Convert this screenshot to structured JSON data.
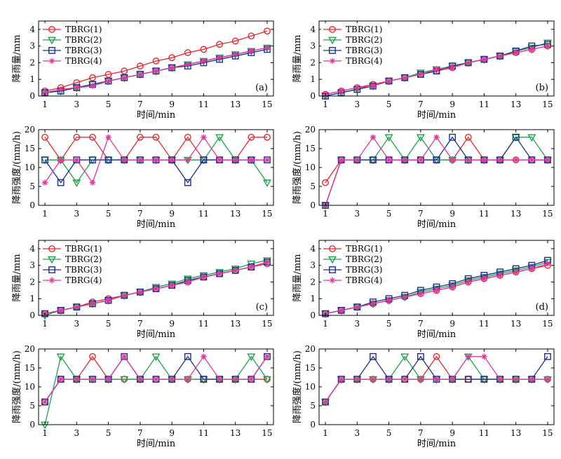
{
  "chart_data": [
    {
      "id": "a",
      "type": "line",
      "tag": "(a)",
      "xlabel": "时间/min",
      "ylabel": "降雨量/mm",
      "xlim": [
        0.6,
        15.4
      ],
      "ylim": [
        0,
        4.5
      ],
      "xticks": [
        1,
        3,
        5,
        7,
        9,
        11,
        13,
        15
      ],
      "yticks": [
        0,
        1,
        2,
        3,
        4
      ],
      "legend": true,
      "legend_position": "top-left",
      "x": [
        1,
        2,
        3,
        4,
        5,
        6,
        7,
        8,
        9,
        10,
        11,
        12,
        13,
        14,
        15
      ],
      "series": [
        {
          "name": "TBRG(1)",
          "values": [
            0.3,
            0.5,
            0.8,
            1.1,
            1.3,
            1.5,
            1.8,
            2.1,
            2.3,
            2.6,
            2.8,
            3.1,
            3.3,
            3.6,
            3.9
          ]
        },
        {
          "name": "TBRG(2)",
          "values": [
            0.2,
            0.3,
            0.5,
            0.7,
            0.9,
            1.1,
            1.3,
            1.5,
            1.7,
            1.9,
            2.1,
            2.3,
            2.5,
            2.7,
            2.9
          ]
        },
        {
          "name": "TBRG(3)",
          "values": [
            0.2,
            0.3,
            0.5,
            0.7,
            0.9,
            1.1,
            1.3,
            1.5,
            1.7,
            1.8,
            2.0,
            2.2,
            2.4,
            2.6,
            2.8
          ]
        },
        {
          "name": "TBRG(4)",
          "values": [
            0.2,
            0.4,
            0.5,
            0.6,
            0.9,
            1.1,
            1.3,
            1.5,
            1.7,
            1.9,
            2.1,
            2.3,
            2.5,
            2.7,
            2.9
          ]
        }
      ]
    },
    {
      "id": "b",
      "type": "line",
      "tag": "(b)",
      "xlabel": "时间/min",
      "ylabel": "降雨量/mm",
      "xlim": [
        0.6,
        15.4
      ],
      "ylim": [
        0,
        4.5
      ],
      "xticks": [
        1,
        3,
        5,
        7,
        9,
        11,
        13,
        15
      ],
      "yticks": [
        0,
        1,
        2,
        3,
        4
      ],
      "legend": true,
      "legend_position": "top-left",
      "x": [
        1,
        2,
        3,
        4,
        5,
        6,
        7,
        8,
        9,
        10,
        11,
        12,
        13,
        14,
        15
      ],
      "series": [
        {
          "name": "TBRG(1)",
          "values": [
            0.1,
            0.3,
            0.5,
            0.7,
            0.9,
            1.1,
            1.3,
            1.5,
            1.7,
            2.0,
            2.2,
            2.4,
            2.6,
            2.8,
            3.0
          ]
        },
        {
          "name": "TBRG(2)",
          "values": [
            0.0,
            0.2,
            0.4,
            0.6,
            0.9,
            1.1,
            1.4,
            1.6,
            1.8,
            2.0,
            2.2,
            2.4,
            2.7,
            2.9,
            3.2
          ]
        },
        {
          "name": "TBRG(3)",
          "values": [
            0.0,
            0.2,
            0.4,
            0.6,
            0.9,
            1.1,
            1.3,
            1.5,
            1.8,
            2.0,
            2.2,
            2.4,
            2.7,
            3.0,
            3.1
          ]
        },
        {
          "name": "TBRG(4)",
          "values": [
            0.1,
            0.3,
            0.5,
            0.6,
            0.9,
            1.1,
            1.3,
            1.6,
            1.7,
            2.0,
            2.2,
            2.4,
            2.6,
            2.8,
            3.0
          ]
        }
      ]
    },
    {
      "id": "a2",
      "type": "line",
      "xlabel": "时间/min",
      "ylabel": "降雨强度/(mm/h)",
      "xlim": [
        0.6,
        15.4
      ],
      "ylim": [
        0,
        20
      ],
      "xticks": [
        1,
        3,
        5,
        7,
        9,
        11,
        13,
        15
      ],
      "yticks": [
        0,
        5,
        10,
        15,
        20
      ],
      "legend": false,
      "x": [
        1,
        2,
        3,
        4,
        5,
        6,
        7,
        8,
        9,
        10,
        11,
        12,
        13,
        14,
        15
      ],
      "series": [
        {
          "name": "TBRG(1)",
          "values": [
            18,
            12,
            18,
            18,
            12,
            12,
            18,
            18,
            12,
            18,
            12,
            12,
            12,
            18,
            18
          ]
        },
        {
          "name": "TBRG(2)",
          "values": [
            12,
            12,
            6,
            12,
            12,
            12,
            12,
            12,
            12,
            12,
            12,
            18,
            12,
            12,
            6
          ]
        },
        {
          "name": "TBRG(3)",
          "values": [
            12,
            6,
            12,
            12,
            12,
            12,
            12,
            12,
            12,
            6,
            12,
            12,
            12,
            12,
            12
          ]
        },
        {
          "name": "TBRG(4)",
          "values": [
            6,
            12,
            12,
            6,
            18,
            12,
            12,
            12,
            12,
            12,
            18,
            12,
            12,
            12,
            12
          ]
        }
      ]
    },
    {
      "id": "b2",
      "type": "line",
      "xlabel": "时间/min",
      "ylabel": "降雨强度/(mm/h)",
      "xlim": [
        0.6,
        15.4
      ],
      "ylim": [
        0,
        20
      ],
      "xticks": [
        1,
        3,
        5,
        7,
        9,
        11,
        13,
        15
      ],
      "yticks": [
        0,
        5,
        10,
        15,
        20
      ],
      "legend": false,
      "x": [
        1,
        2,
        3,
        4,
        5,
        6,
        7,
        8,
        9,
        10,
        11,
        12,
        13,
        14,
        15
      ],
      "series": [
        {
          "name": "TBRG(1)",
          "values": [
            6,
            12,
            12,
            12,
            12,
            12,
            12,
            12,
            12,
            18,
            12,
            12,
            12,
            12,
            12
          ]
        },
        {
          "name": "TBRG(2)",
          "values": [
            0,
            12,
            12,
            12,
            18,
            12,
            18,
            12,
            12,
            12,
            12,
            12,
            18,
            18,
            12
          ]
        },
        {
          "name": "TBRG(3)",
          "values": [
            0,
            12,
            12,
            12,
            12,
            12,
            12,
            12,
            18,
            12,
            12,
            12,
            18,
            12,
            12
          ]
        },
        {
          "name": "TBRG(4)",
          "values": [
            0,
            12,
            12,
            18,
            12,
            12,
            12,
            18,
            12,
            12,
            12,
            12,
            12,
            12,
            12
          ]
        }
      ]
    },
    {
      "id": "c",
      "type": "line",
      "tag": "(c)",
      "xlabel": "时间/min",
      "ylabel": "降雨量/mm",
      "xlim": [
        0.6,
        15.4
      ],
      "ylim": [
        0,
        4.5
      ],
      "xticks": [
        1,
        3,
        5,
        7,
        9,
        11,
        13,
        15
      ],
      "yticks": [
        0,
        1,
        2,
        3,
        4
      ],
      "legend": true,
      "legend_position": "top-left",
      "x": [
        1,
        2,
        3,
        4,
        5,
        6,
        7,
        8,
        9,
        10,
        11,
        12,
        13,
        14,
        15
      ],
      "series": [
        {
          "name": "TBRG(1)",
          "values": [
            0.1,
            0.3,
            0.5,
            0.8,
            1.0,
            1.2,
            1.4,
            1.6,
            1.8,
            2.0,
            2.3,
            2.5,
            2.7,
            2.9,
            3.1
          ]
        },
        {
          "name": "TBRG(2)",
          "values": [
            0.0,
            0.3,
            0.5,
            0.7,
            0.9,
            1.2,
            1.4,
            1.7,
            1.9,
            2.2,
            2.4,
            2.6,
            2.8,
            3.1,
            3.3
          ]
        },
        {
          "name": "TBRG(3)",
          "values": [
            0.1,
            0.3,
            0.5,
            0.7,
            0.9,
            1.2,
            1.4,
            1.6,
            1.8,
            2.1,
            2.3,
            2.5,
            2.7,
            2.9,
            3.2
          ]
        },
        {
          "name": "TBRG(4)",
          "values": [
            0.1,
            0.3,
            0.5,
            0.7,
            0.9,
            1.2,
            1.4,
            1.6,
            1.8,
            2.0,
            2.3,
            2.5,
            2.7,
            2.9,
            3.2
          ]
        }
      ]
    },
    {
      "id": "d",
      "type": "line",
      "tag": "(d)",
      "xlabel": "时间/min",
      "ylabel": "降雨量/mm",
      "xlim": [
        0.6,
        15.4
      ],
      "ylim": [
        0,
        4.5
      ],
      "xticks": [
        1,
        3,
        5,
        7,
        9,
        11,
        13,
        15
      ],
      "yticks": [
        0,
        1,
        2,
        3,
        4
      ],
      "legend": true,
      "legend_position": "top-left",
      "x": [
        1,
        2,
        3,
        4,
        5,
        6,
        7,
        8,
        9,
        10,
        11,
        12,
        13,
        14,
        15
      ],
      "series": [
        {
          "name": "TBRG(1)",
          "values": [
            0.1,
            0.3,
            0.5,
            0.7,
            0.9,
            1.1,
            1.3,
            1.5,
            1.7,
            2.0,
            2.2,
            2.4,
            2.6,
            2.8,
            3.0
          ]
        },
        {
          "name": "TBRG(2)",
          "values": [
            0.1,
            0.3,
            0.5,
            0.7,
            0.9,
            1.1,
            1.4,
            1.6,
            1.8,
            2.1,
            2.3,
            2.5,
            2.7,
            2.9,
            3.2
          ]
        },
        {
          "name": "TBRG(3)",
          "values": [
            0.1,
            0.3,
            0.5,
            0.8,
            1.0,
            1.2,
            1.5,
            1.7,
            1.9,
            2.2,
            2.4,
            2.6,
            2.8,
            3.0,
            3.3
          ]
        },
        {
          "name": "TBRG(4)",
          "values": [
            0.1,
            0.3,
            0.5,
            0.7,
            0.9,
            1.1,
            1.3,
            1.5,
            1.7,
            2.0,
            2.2,
            2.4,
            2.6,
            2.8,
            3.1
          ]
        }
      ]
    },
    {
      "id": "c2",
      "type": "line",
      "xlabel": "时间/min",
      "ylabel": "降雨强度/(mm/h)",
      "xlim": [
        0.6,
        15.4
      ],
      "ylim": [
        0,
        20
      ],
      "xticks": [
        1,
        3,
        5,
        7,
        9,
        11,
        13,
        15
      ],
      "yticks": [
        0,
        5,
        10,
        15,
        20
      ],
      "legend": false,
      "x": [
        1,
        2,
        3,
        4,
        5,
        6,
        7,
        8,
        9,
        10,
        11,
        12,
        13,
        14,
        15
      ],
      "series": [
        {
          "name": "TBRG(1)",
          "values": [
            6,
            12,
            12,
            18,
            12,
            12,
            12,
            12,
            12,
            12,
            12,
            12,
            12,
            12,
            12
          ]
        },
        {
          "name": "TBRG(2)",
          "values": [
            0,
            18,
            12,
            12,
            12,
            12,
            12,
            18,
            12,
            12,
            12,
            12,
            12,
            18,
            12
          ]
        },
        {
          "name": "TBRG(3)",
          "values": [
            6,
            12,
            12,
            12,
            12,
            18,
            12,
            12,
            12,
            18,
            12,
            12,
            12,
            12,
            18
          ]
        },
        {
          "name": "TBRG(4)",
          "values": [
            6,
            12,
            12,
            12,
            12,
            18,
            12,
            12,
            12,
            12,
            18,
            12,
            12,
            12,
            18
          ]
        }
      ]
    },
    {
      "id": "d2",
      "type": "line",
      "xlabel": "时间/min",
      "ylabel": "降雨强度/(mm/h)",
      "xlim": [
        0.6,
        15.4
      ],
      "ylim": [
        0,
        20
      ],
      "xticks": [
        1,
        3,
        5,
        7,
        9,
        11,
        13,
        15
      ],
      "yticks": [
        0,
        5,
        10,
        15,
        20
      ],
      "legend": false,
      "x": [
        1,
        2,
        3,
        4,
        5,
        6,
        7,
        8,
        9,
        10,
        11,
        12,
        13,
        14,
        15
      ],
      "series": [
        {
          "name": "TBRG(1)",
          "values": [
            6,
            12,
            12,
            12,
            12,
            12,
            12,
            18,
            12,
            12,
            12,
            12,
            12,
            12,
            12
          ]
        },
        {
          "name": "TBRG(2)",
          "values": [
            6,
            12,
            12,
            12,
            12,
            18,
            12,
            12,
            12,
            18,
            12,
            12,
            12,
            12,
            12
          ]
        },
        {
          "name": "TBRG(3)",
          "values": [
            6,
            12,
            12,
            18,
            12,
            12,
            18,
            12,
            12,
            12,
            12,
            12,
            12,
            12,
            18
          ]
        },
        {
          "name": "TBRG(4)",
          "values": [
            6,
            12,
            12,
            12,
            12,
            12,
            12,
            12,
            12,
            18,
            18,
            12,
            12,
            12,
            12
          ]
        }
      ]
    }
  ],
  "series_styles": {
    "TBRG(1)": {
      "color": "#e8272e",
      "marker": "circle"
    },
    "TBRG(2)": {
      "color": "#19a44a",
      "marker": "triangle-down"
    },
    "TBRG(3)": {
      "color": "#1c2f8f",
      "marker": "square"
    },
    "TBRG(4)": {
      "color": "#e5359a",
      "marker": "star"
    }
  }
}
